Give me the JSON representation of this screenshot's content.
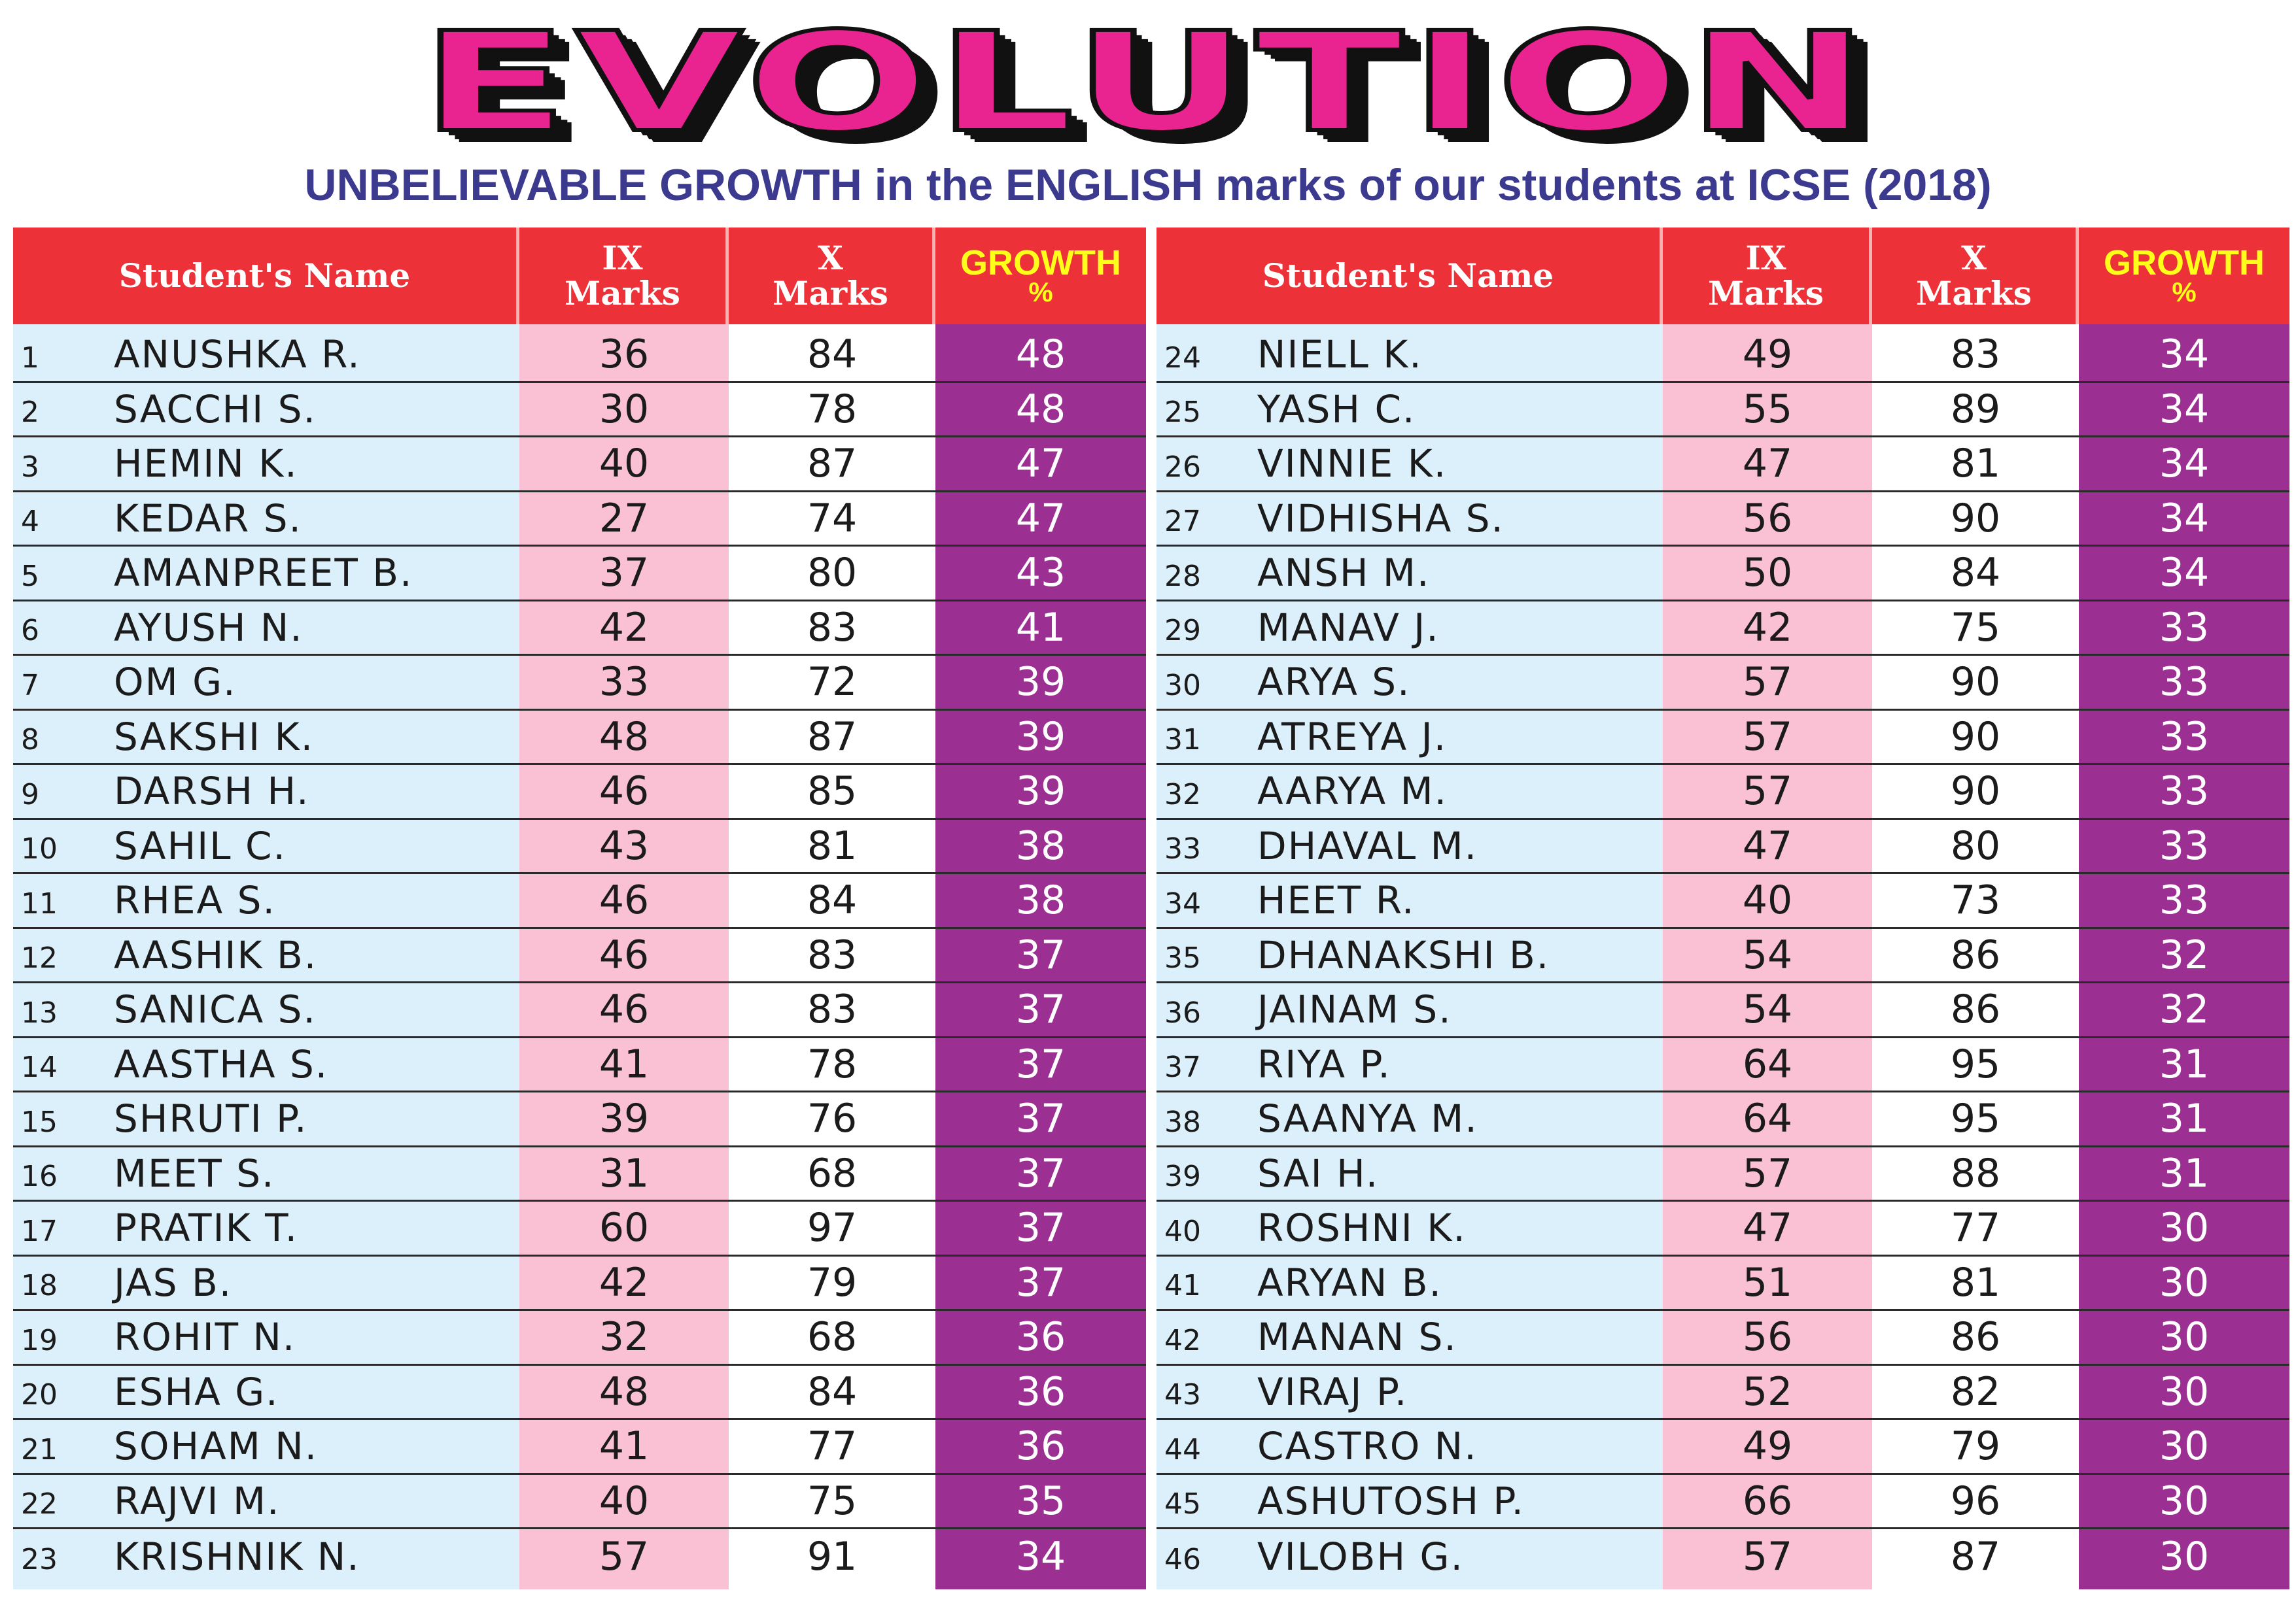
{
  "title": "EVOLUTION",
  "subtitle": "UNBELIEVABLE GROWTH in the ENGLISH marks of our students at ICSE (2018)",
  "headers": {
    "name": "Student's Name",
    "ix_line1": "IX",
    "ix_line2": "Marks",
    "x_line1": "X",
    "x_line2": "Marks",
    "growth_line1": "GROWTH",
    "growth_line2": "%"
  },
  "colors": {
    "title": "#e9238f",
    "subtitle": "#3c3a8f",
    "header_bg": "#ec3238",
    "growth_header_text": "#ffff1a",
    "name_cell_bg": "#dcf0fb",
    "ix_cell_bg": "#f9c1d3",
    "growth_cell_bg": "#9b2f92"
  },
  "left_rows": [
    {
      "no": "1",
      "name": "ANUSHKA R.",
      "ix": "36",
      "x": "84",
      "growth": "48"
    },
    {
      "no": "2",
      "name": "SACCHI S.",
      "ix": "30",
      "x": "78",
      "growth": "48"
    },
    {
      "no": "3",
      "name": "HEMIN K.",
      "ix": "40",
      "x": "87",
      "growth": "47"
    },
    {
      "no": "4",
      "name": "KEDAR S.",
      "ix": "27",
      "x": "74",
      "growth": "47"
    },
    {
      "no": "5",
      "name": "AMANPREET  B.",
      "ix": "37",
      "x": "80",
      "growth": "43"
    },
    {
      "no": "6",
      "name": "AYUSH N.",
      "ix": "42",
      "x": "83",
      "growth": "41"
    },
    {
      "no": "7",
      "name": "OM G.",
      "ix": "33",
      "x": "72",
      "growth": "39"
    },
    {
      "no": "8",
      "name": "SAKSHI K.",
      "ix": "48",
      "x": "87",
      "growth": "39"
    },
    {
      "no": "9",
      "name": "DARSH H.",
      "ix": "46",
      "x": "85",
      "growth": "39"
    },
    {
      "no": "10",
      "name": "SAHIL C.",
      "ix": "43",
      "x": "81",
      "growth": "38"
    },
    {
      "no": "11",
      "name": "RHEA S.",
      "ix": "46",
      "x": "84",
      "growth": "38"
    },
    {
      "no": "12",
      "name": "AASHIK B.",
      "ix": "46",
      "x": "83",
      "growth": "37"
    },
    {
      "no": "13",
      "name": "SANICA S.",
      "ix": "46",
      "x": "83",
      "growth": "37"
    },
    {
      "no": "14",
      "name": "AASTHA S.",
      "ix": "41",
      "x": "78",
      "growth": "37"
    },
    {
      "no": "15",
      "name": "SHRUTI P.",
      "ix": "39",
      "x": "76",
      "growth": "37"
    },
    {
      "no": "16",
      "name": "MEET S.",
      "ix": "31",
      "x": "68",
      "growth": "37"
    },
    {
      "no": "17",
      "name": "PRATIK T.",
      "ix": "60",
      "x": "97",
      "growth": "37"
    },
    {
      "no": "18",
      "name": "JAS B.",
      "ix": "42",
      "x": "79",
      "growth": "37"
    },
    {
      "no": "19",
      "name": "ROHIT N.",
      "ix": "32",
      "x": "68",
      "growth": "36"
    },
    {
      "no": "20",
      "name": "ESHA G.",
      "ix": "48",
      "x": "84",
      "growth": "36"
    },
    {
      "no": "21",
      "name": "SOHAM N.",
      "ix": "41",
      "x": "77",
      "growth": "36"
    },
    {
      "no": "22",
      "name": "RAJVI M.",
      "ix": "40",
      "x": "75",
      "growth": "35"
    },
    {
      "no": "23",
      "name": "KRISHNIK N.",
      "ix": "57",
      "x": "91",
      "growth": "34"
    }
  ],
  "right_rows": [
    {
      "no": "24",
      "name": "NIELL K.",
      "ix": "49",
      "x": "83",
      "growth": "34"
    },
    {
      "no": "25",
      "name": "YASH C.",
      "ix": "55",
      "x": "89",
      "growth": "34"
    },
    {
      "no": "26",
      "name": "VINNIE K.",
      "ix": "47",
      "x": "81",
      "growth": "34"
    },
    {
      "no": "27",
      "name": "VIDHISHA S.",
      "ix": "56",
      "x": "90",
      "growth": "34"
    },
    {
      "no": "28",
      "name": "ANSH M.",
      "ix": "50",
      "x": "84",
      "growth": "34"
    },
    {
      "no": "29",
      "name": "MANAV J.",
      "ix": "42",
      "x": "75",
      "growth": "33"
    },
    {
      "no": "30",
      "name": "ARYA S.",
      "ix": "57",
      "x": "90",
      "growth": "33"
    },
    {
      "no": "31",
      "name": "ATREYA J.",
      "ix": "57",
      "x": "90",
      "growth": "33"
    },
    {
      "no": "32",
      "name": "AARYA M.",
      "ix": "57",
      "x": "90",
      "growth": "33"
    },
    {
      "no": "33",
      "name": "DHAVAL M.",
      "ix": "47",
      "x": "80",
      "growth": "33"
    },
    {
      "no": "34",
      "name": "HEET R.",
      "ix": "40",
      "x": "73",
      "growth": "33"
    },
    {
      "no": "35",
      "name": "DHANAKSHI B.",
      "ix": "54",
      "x": "86",
      "growth": "32"
    },
    {
      "no": "36",
      "name": "JAINAM S.",
      "ix": "54",
      "x": "86",
      "growth": "32"
    },
    {
      "no": "37",
      "name": "RIYA P.",
      "ix": "64",
      "x": "95",
      "growth": "31"
    },
    {
      "no": "38",
      "name": "SAANYA M.",
      "ix": "64",
      "x": "95",
      "growth": "31"
    },
    {
      "no": "39",
      "name": "SAI H.",
      "ix": "57",
      "x": "88",
      "growth": "31"
    },
    {
      "no": "40",
      "name": "ROSHNI K.",
      "ix": "47",
      "x": "77",
      "growth": "30"
    },
    {
      "no": "41",
      "name": "ARYAN B.",
      "ix": "51",
      "x": "81",
      "growth": "30"
    },
    {
      "no": "42",
      "name": "MANAN S.",
      "ix": "56",
      "x": "86",
      "growth": "30"
    },
    {
      "no": "43",
      "name": "VIRAJ P.",
      "ix": "52",
      "x": "82",
      "growth": "30"
    },
    {
      "no": "44",
      "name": "CASTRO N.",
      "ix": "49",
      "x": "79",
      "growth": "30"
    },
    {
      "no": "45",
      "name": "ASHUTOSH P.",
      "ix": "66",
      "x": "96",
      "growth": "30"
    },
    {
      "no": "46",
      "name": "VILOBH G.",
      "ix": "57",
      "x": "87",
      "growth": "30"
    }
  ]
}
